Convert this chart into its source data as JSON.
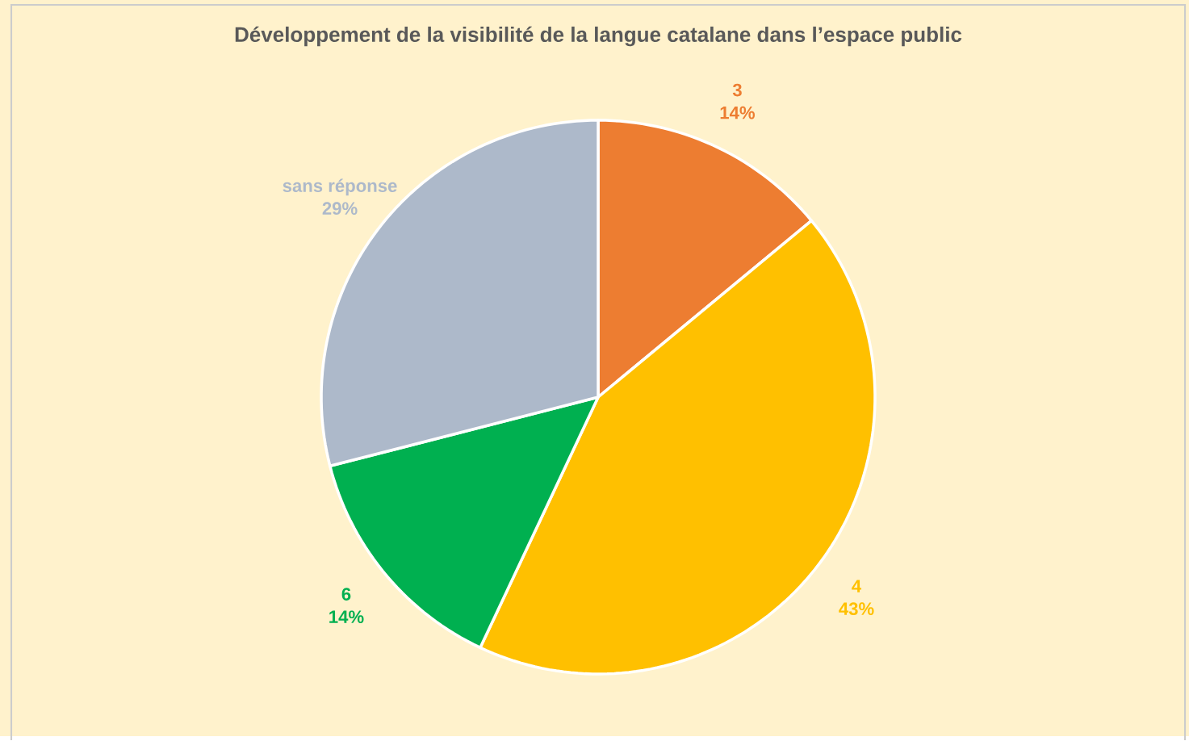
{
  "chart_data": {
    "type": "pie",
    "title": "Développement de la visibilité de la langue catalane dans l’espace public",
    "categories": [
      "3",
      "4",
      "6",
      "sans réponse"
    ],
    "values": [
      14,
      43,
      14,
      29
    ],
    "value_labels": [
      "14%",
      "43%",
      "14%",
      "29%"
    ],
    "colors": [
      "#ed7d31",
      "#ffc000",
      "#00b050",
      "#adb9ca"
    ]
  }
}
